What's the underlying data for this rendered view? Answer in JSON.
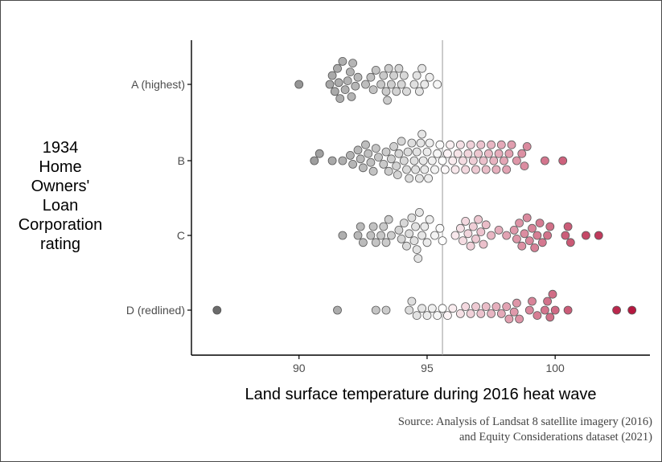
{
  "chart_data": {
    "type": "scatter",
    "subtype": "beeswarm",
    "xlabel": "Land surface temperature during 2016 heat wave",
    "ylabel_lines": [
      "1934",
      "Home",
      "Owners'",
      "Loan",
      "Corporation",
      "rating"
    ],
    "categories": [
      "A (highest)",
      "B",
      "C",
      "D (redlined)"
    ],
    "x_ticks": [
      90,
      95,
      100
    ],
    "xlim": [
      85.8,
      103.7
    ],
    "reference_line_x": 95.6,
    "color_scale": {
      "low": "#6b6b6b",
      "mid": "#ffffff",
      "high": "#b5173f",
      "low_value": 86.8,
      "mid_value": 95.6,
      "high_value": 103.0
    },
    "grid": false,
    "legend": "none",
    "series": [
      {
        "category": "A (highest)",
        "values": [
          90.0,
          91.2,
          91.3,
          91.4,
          91.5,
          91.55,
          91.6,
          91.7,
          91.8,
          91.9,
          92.0,
          92.05,
          92.1,
          92.2,
          92.3,
          92.6,
          92.8,
          92.9,
          93.0,
          93.2,
          93.3,
          93.4,
          93.45,
          93.5,
          93.6,
          93.7,
          93.8,
          93.9,
          94.0,
          94.1,
          94.2,
          94.5,
          94.6,
          94.7,
          94.8,
          94.9,
          95.1,
          95.4
        ]
      },
      {
        "category": "B",
        "values": [
          90.6,
          90.8,
          91.3,
          91.7,
          92.0,
          92.1,
          92.3,
          92.4,
          92.5,
          92.6,
          92.7,
          92.8,
          92.9,
          93.0,
          93.1,
          93.3,
          93.4,
          93.5,
          93.6,
          93.7,
          93.8,
          93.85,
          93.9,
          94.0,
          94.1,
          94.2,
          94.25,
          94.3,
          94.4,
          94.5,
          94.55,
          94.6,
          94.7,
          94.75,
          94.8,
          94.85,
          94.9,
          95.0,
          95.05,
          95.1,
          95.2,
          95.3,
          95.4,
          95.5,
          95.6,
          95.7,
          95.8,
          95.9,
          96.0,
          96.1,
          96.2,
          96.3,
          96.4,
          96.5,
          96.6,
          96.7,
          96.8,
          96.9,
          97.0,
          97.1,
          97.2,
          97.3,
          97.4,
          97.5,
          97.6,
          97.7,
          97.8,
          97.9,
          98.0,
          98.1,
          98.2,
          98.3,
          98.5,
          98.7,
          98.8,
          98.9,
          99.6,
          100.3
        ]
      },
      {
        "category": "C",
        "values": [
          91.7,
          92.3,
          92.4,
          92.5,
          92.8,
          92.9,
          93.0,
          93.2,
          93.3,
          93.4,
          93.5,
          93.6,
          93.9,
          94.0,
          94.1,
          94.2,
          94.3,
          94.4,
          94.5,
          94.55,
          94.6,
          94.65,
          94.7,
          94.8,
          94.9,
          95.0,
          95.1,
          95.3,
          95.5,
          95.6,
          96.1,
          96.3,
          96.4,
          96.5,
          96.6,
          96.7,
          96.8,
          96.9,
          97.0,
          97.1,
          97.2,
          97.3,
          97.5,
          97.8,
          98.1,
          98.4,
          98.5,
          98.6,
          98.7,
          98.8,
          98.9,
          99.0,
          99.1,
          99.2,
          99.3,
          99.4,
          99.5,
          99.7,
          99.8,
          100.4,
          100.5,
          100.6,
          101.2,
          101.7
        ]
      },
      {
        "category": "D (redlined)",
        "values": [
          86.8,
          91.5,
          93.0,
          93.4,
          94.3,
          94.4,
          94.6,
          94.8,
          95.0,
          95.2,
          95.4,
          95.6,
          95.8,
          96.0,
          96.3,
          96.5,
          96.7,
          96.9,
          97.1,
          97.3,
          97.5,
          97.7,
          97.9,
          98.1,
          98.2,
          98.4,
          98.5,
          98.6,
          99.0,
          99.1,
          99.3,
          99.6,
          99.7,
          99.8,
          99.9,
          100.0,
          100.5,
          102.4,
          103.0
        ]
      }
    ]
  },
  "source_lines": [
    "Source: Analysis of Landsat 8 satellite imagery (2016)",
    "and Equity Considerations dataset (2021)"
  ]
}
